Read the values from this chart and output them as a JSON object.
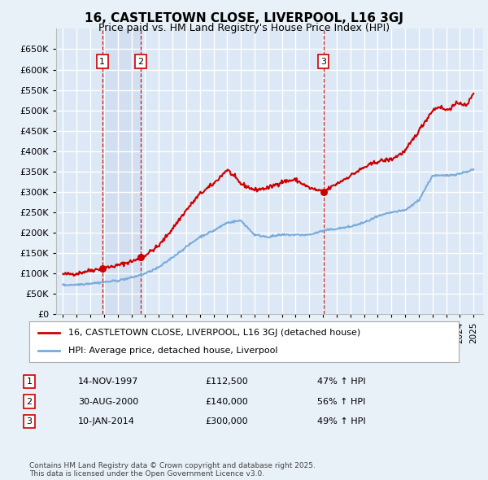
{
  "title": "16, CASTLETOWN CLOSE, LIVERPOOL, L16 3GJ",
  "subtitle": "Price paid vs. HM Land Registry's House Price Index (HPI)",
  "background_color": "#e8f0f8",
  "plot_bg_color": "#dce8f5",
  "grid_color": "#ffffff",
  "sale_color": "#cc0000",
  "hpi_color": "#7aabdb",
  "sales": [
    {
      "date": 1997.87,
      "price": 112500,
      "label": "1"
    },
    {
      "date": 2000.66,
      "price": 140000,
      "label": "2"
    },
    {
      "date": 2014.03,
      "price": 300000,
      "label": "3"
    }
  ],
  "sale_annotations": [
    {
      "num": "1",
      "date": "14-NOV-1997",
      "price": "£112,500",
      "hpi": "47% ↑ HPI"
    },
    {
      "num": "2",
      "date": "30-AUG-2000",
      "price": "£140,000",
      "hpi": "56% ↑ HPI"
    },
    {
      "num": "3",
      "date": "10-JAN-2014",
      "price": "£300,000",
      "hpi": "49% ↑ HPI"
    }
  ],
  "legend_sale": "16, CASTLETOWN CLOSE, LIVERPOOL, L16 3GJ (detached house)",
  "legend_hpi": "HPI: Average price, detached house, Liverpool",
  "footer": "Contains HM Land Registry data © Crown copyright and database right 2025.\nThis data is licensed under the Open Government Licence v3.0.",
  "ylim": [
    0,
    700000
  ],
  "yticks": [
    0,
    50000,
    100000,
    150000,
    200000,
    250000,
    300000,
    350000,
    400000,
    450000,
    500000,
    550000,
    600000,
    650000
  ],
  "xlim": [
    1994.5,
    2025.7
  ],
  "sale_anchors_x": [
    1995,
    1996,
    1997,
    1997.87,
    1999,
    2000.5,
    2001,
    2002,
    2003,
    2004,
    2005,
    2006,
    2007,
    2008,
    2009,
    2010,
    2011,
    2012,
    2013,
    2014.03,
    2015,
    2016,
    2017,
    2018,
    2019,
    2020,
    2021,
    2022,
    2022.5,
    2023,
    2024,
    2024.5,
    2025
  ],
  "sale_anchors_y": [
    98000,
    100000,
    108000,
    112500,
    120000,
    135000,
    145000,
    168000,
    210000,
    255000,
    295000,
    320000,
    355000,
    320000,
    305000,
    310000,
    325000,
    330000,
    310000,
    300000,
    320000,
    340000,
    360000,
    375000,
    380000,
    400000,
    450000,
    500000,
    510000,
    500000,
    520000,
    510000,
    545000
  ],
  "hpi_anchors_x": [
    1995,
    1996,
    1997,
    1998,
    1999,
    2000,
    2001,
    2002,
    2003,
    2004,
    2005,
    2006,
    2007,
    2008,
    2009,
    2010,
    2011,
    2012,
    2013,
    2014,
    2015,
    2016,
    2017,
    2018,
    2019,
    2020,
    2021,
    2022,
    2023,
    2024,
    2025
  ],
  "hpi_anchors_y": [
    72000,
    73000,
    76000,
    79000,
    83000,
    90000,
    100000,
    115000,
    140000,
    165000,
    190000,
    205000,
    225000,
    230000,
    195000,
    190000,
    195000,
    195000,
    195000,
    205000,
    210000,
    215000,
    225000,
    240000,
    250000,
    255000,
    280000,
    340000,
    340000,
    345000,
    355000
  ]
}
